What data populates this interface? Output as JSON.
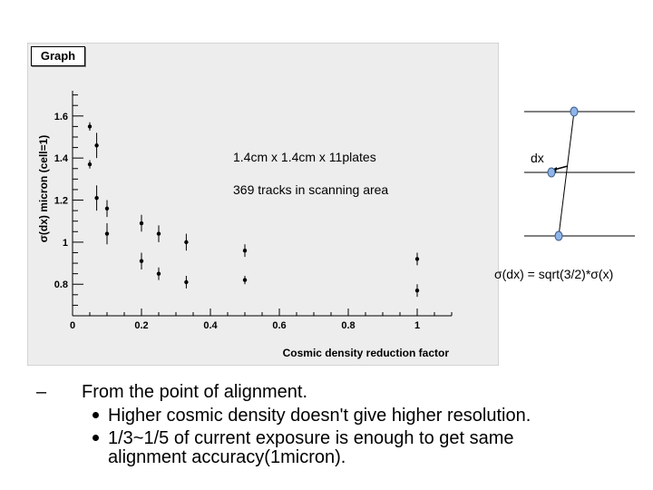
{
  "graph": {
    "tab_label": "Graph",
    "annotations": [
      "1.4cm x 1.4cm x 11plates",
      "369 tracks in scanning area"
    ]
  },
  "chart_data": {
    "type": "scatter",
    "xlabel": "Cosmic density reduction factor",
    "ylabel": "σ(dx) micron (cell=1)",
    "xlim": [
      0,
      1.1
    ],
    "ylim": [
      0.65,
      1.72
    ],
    "x_ticks": [
      "0",
      "0.2",
      "0.4",
      "0.6",
      "0.8",
      "1"
    ],
    "y_ticks": [
      "0.8",
      "1",
      "1.2",
      "1.4",
      "1.6"
    ],
    "points": [
      {
        "x": 0.05,
        "y": 1.55,
        "err": 0.02
      },
      {
        "x": 0.05,
        "y": 1.37,
        "err": 0.02
      },
      {
        "x": 0.07,
        "y": 1.46,
        "err": 0.06
      },
      {
        "x": 0.07,
        "y": 1.21,
        "err": 0.06
      },
      {
        "x": 0.1,
        "y": 1.16,
        "err": 0.04
      },
      {
        "x": 0.1,
        "y": 1.04,
        "err": 0.05
      },
      {
        "x": 0.2,
        "y": 1.09,
        "err": 0.04
      },
      {
        "x": 0.2,
        "y": 0.91,
        "err": 0.04
      },
      {
        "x": 0.25,
        "y": 1.04,
        "err": 0.04
      },
      {
        "x": 0.25,
        "y": 0.85,
        "err": 0.03
      },
      {
        "x": 0.33,
        "y": 1.0,
        "err": 0.04
      },
      {
        "x": 0.33,
        "y": 0.81,
        "err": 0.03
      },
      {
        "x": 0.5,
        "y": 0.96,
        "err": 0.03
      },
      {
        "x": 0.5,
        "y": 0.82,
        "err": 0.02
      },
      {
        "x": 1.0,
        "y": 0.92,
        "err": 0.03
      },
      {
        "x": 1.0,
        "y": 0.77,
        "err": 0.03
      }
    ],
    "grid": false
  },
  "diagram": {
    "dx_label": "dx",
    "formula": "σ(dx) = sqrt(3/2)*σ(x)"
  },
  "bullets": {
    "main": "From the point of alignment.",
    "items": [
      "Higher cosmic density doesn't give higher resolution.",
      "1/3~1/5 of current exposure is enough to get same alignment accuracy(1micron)."
    ]
  }
}
